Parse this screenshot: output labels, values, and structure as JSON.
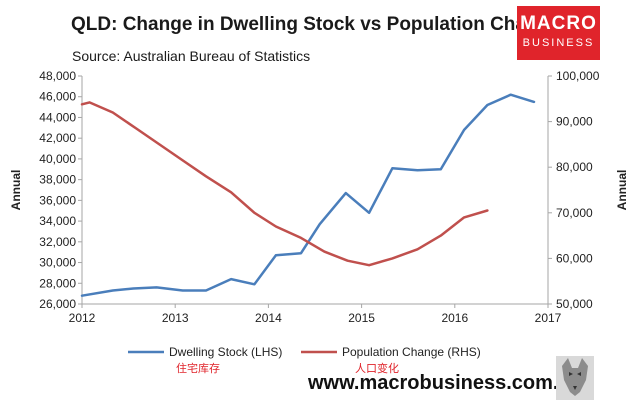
{
  "header": {
    "title": "QLD: Change in Dwelling Stock vs Population Change",
    "subtitle": "Source: Australian Bureau of Statistics"
  },
  "logo": {
    "line1": "MACRO",
    "line2": "BUSINESS",
    "color": "#e0242b"
  },
  "footer": {
    "website": "www.macrobusiness.com.au",
    "annotation_dwelling": "住宅库存",
    "annotation_population": "人口变化"
  },
  "chart_data": {
    "type": "line",
    "xlabel": "",
    "x_ticks": [
      2012,
      2013,
      2014,
      2015,
      2016,
      2017
    ],
    "xlim": [
      2012,
      2017
    ],
    "left_axis": {
      "label": "Annual",
      "ylim": [
        26000,
        48000
      ],
      "ticks": [
        "26,000",
        "28,000",
        "30,000",
        "32,000",
        "34,000",
        "36,000",
        "38,000",
        "40,000",
        "42,000",
        "44,000",
        "46,000",
        "48,000"
      ]
    },
    "right_axis": {
      "label": "Annual",
      "ylim": [
        50000,
        100000
      ],
      "ticks": [
        "50,000",
        "60,000",
        "70,000",
        "80,000",
        "90,000",
        "100,000"
      ]
    },
    "grid": false,
    "legend_position": "bottom",
    "series": [
      {
        "name": "Dwelling Stock (LHS)",
        "axis": "left",
        "color": "#4a7ebb",
        "x": [
          2012.0,
          2012.33,
          2012.55,
          2012.8,
          2013.08,
          2013.33,
          2013.6,
          2013.85,
          2014.08,
          2014.35,
          2014.55,
          2014.83,
          2015.08,
          2015.33,
          2015.6,
          2015.85,
          2016.1,
          2016.35,
          2016.6,
          2016.85
        ],
        "values": [
          26800,
          27300,
          27500,
          27600,
          27300,
          27300,
          28400,
          27900,
          30700,
          30900,
          33700,
          36700,
          34800,
          39100,
          38900,
          39000,
          42800,
          45200,
          46200,
          45500
        ]
      },
      {
        "name": "Population Change (RHS)",
        "axis": "right",
        "color": "#c0504d",
        "x": [
          2012.0,
          2012.08,
          2012.33,
          2012.58,
          2012.83,
          2013.08,
          2013.33,
          2013.6,
          2013.85,
          2014.08,
          2014.35,
          2014.6,
          2014.85,
          2015.08,
          2015.33,
          2015.6,
          2015.85,
          2016.1,
          2016.35
        ],
        "values": [
          93800,
          94200,
          92000,
          88500,
          85000,
          81500,
          78000,
          74500,
          70000,
          67000,
          64500,
          61500,
          59500,
          58500,
          60000,
          62000,
          65000,
          69000,
          70500
        ]
      }
    ]
  }
}
